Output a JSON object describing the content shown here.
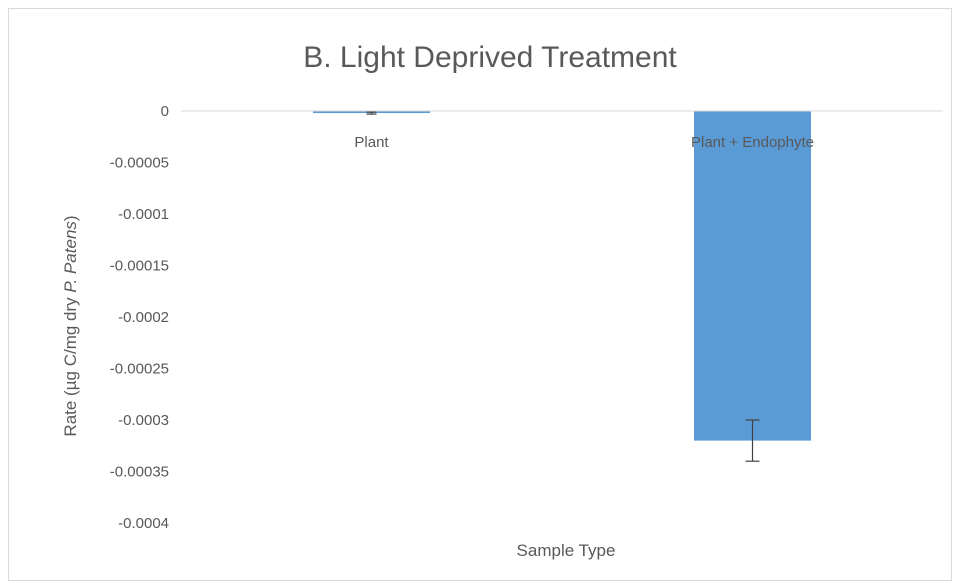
{
  "chart_data": {
    "type": "bar",
    "title": "B. Light Deprived Treatment",
    "xlabel": "Sample Type",
    "ylabel_parts": [
      "Rate (µg C/mg  dry ",
      "P.  Patens",
      ")"
    ],
    "categories": [
      "Plant",
      "Plant + Endophyte"
    ],
    "values": [
      -2e-06,
      -0.00032
    ],
    "error": [
      1e-06,
      2e-05
    ],
    "ylim": [
      -0.0004,
      0
    ],
    "yticks": [
      0,
      -5e-05,
      -0.0001,
      -0.00015,
      -0.0002,
      -0.00025,
      -0.0003,
      -0.00035,
      -0.0004
    ],
    "ytick_labels": [
      "0",
      "-0.00005",
      "-0.0001",
      "-0.00015",
      "-0.0002",
      "-0.00025",
      "-0.0003",
      "-0.00035",
      "-0.0004"
    ],
    "bar_color": "#5b9bd5",
    "axis_color": "#d9d9d9",
    "text_color": "#595959",
    "grid": false,
    "legend": "none"
  }
}
